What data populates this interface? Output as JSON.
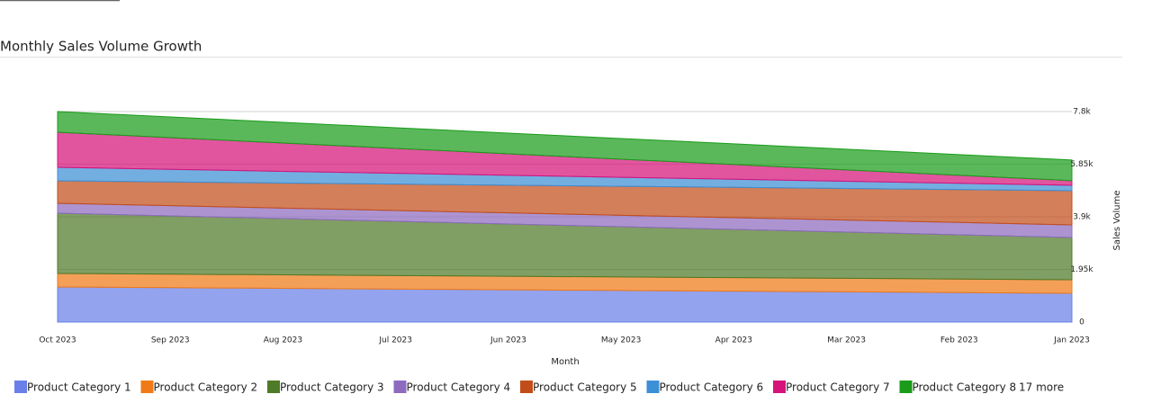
{
  "chart_data": {
    "type": "stacked-area",
    "title": "Monthly Sales Volume Growth",
    "x_label": "Month",
    "y_label": "Sales Volume",
    "categories": [
      "Oct 2023",
      "Sep 2023",
      "Aug 2023",
      "Jul 2023",
      "Jun 2023",
      "May 2023",
      "Apr 2023",
      "Mar 2023",
      "Feb 2023",
      "Jan 2023"
    ],
    "series": [
      {
        "name": "Product Category 1",
        "color": "#6a7fe8",
        "values": [
          1300,
          1274,
          1248,
          1222,
          1196,
          1170,
          1145,
          1119,
          1093,
          1067
        ]
      },
      {
        "name": "Product Category 2",
        "color": "#f07a18",
        "values": [
          500,
          500,
          500,
          500,
          500,
          500,
          500,
          500,
          500,
          500
        ]
      },
      {
        "name": "Product Category 3",
        "color": "#4f7a28",
        "values": [
          2233,
          2159,
          2085,
          2011,
          1937,
          1863,
          1789,
          1715,
          1641,
          1567
        ]
      },
      {
        "name": "Product Category 4",
        "color": "#8e6bbf",
        "values": [
          367,
          378,
          389,
          400,
          411,
          422,
          434,
          445,
          456,
          467
        ]
      },
      {
        "name": "Product Category 5",
        "color": "#c24d1a",
        "values": [
          833,
          881,
          929,
          978,
          1026,
          1074,
          1122,
          1170,
          1219,
          1267
        ]
      },
      {
        "name": "Product Category 6",
        "color": "#3d8fd6",
        "values": [
          500,
          467,
          433,
          400,
          367,
          333,
          300,
          267,
          233,
          200
        ]
      },
      {
        "name": "Product Category 7",
        "color": "#d6137a",
        "values": [
          1300,
          1174,
          1049,
          923,
          798,
          672,
          547,
          421,
          296,
          170
        ]
      },
      {
        "name": "Product Category 8",
        "color": "#1a9c1a",
        "values": [
          767,
          767,
          767,
          767,
          767,
          767,
          767,
          767,
          767,
          767
        ]
      }
    ],
    "legend_more": "17 more",
    "ylim": [
      0,
      7800
    ],
    "yticks": [
      0,
      {
        "value": 1950,
        "label": "1.95k"
      },
      {
        "value": 3900,
        "label": "3.9k"
      },
      {
        "value": 5850,
        "label": "5.85k"
      },
      {
        "value": 7800,
        "label": "7.8k"
      }
    ],
    "grid": true,
    "legend": "bottom"
  }
}
